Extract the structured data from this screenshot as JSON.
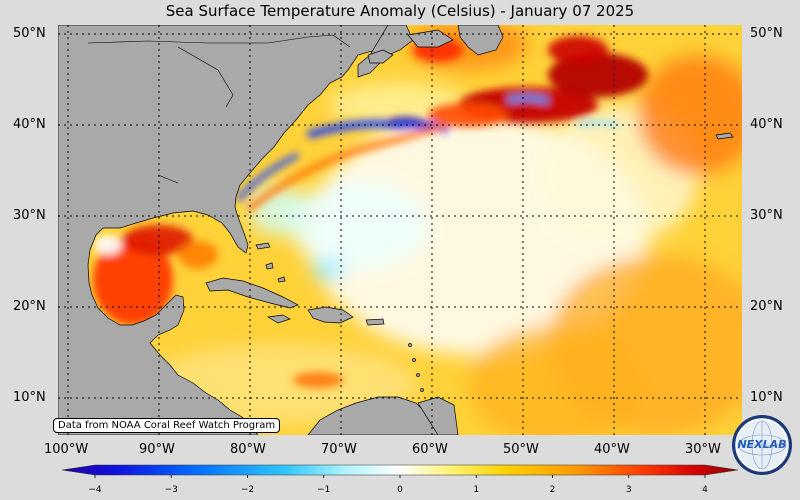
{
  "title": "Sea Surface Temperature Anomaly (Celsius) - January 07 2025",
  "lat_labels": [
    "50°N",
    "40°N",
    "30°N",
    "20°N",
    "10°N"
  ],
  "lon_labels": [
    "100°W",
    "90°W",
    "80°W",
    "70°W",
    "60°W",
    "50°W",
    "40°W",
    "30°W"
  ],
  "credit": "Data from NOAA Coral Reef Watch Program",
  "logo_text": "NEXLAB",
  "colorbar": {
    "min": -4,
    "max": 4,
    "ticks": [
      "−4",
      "−3",
      "−2",
      "−1",
      "0",
      "1",
      "2",
      "3",
      "4"
    ]
  },
  "colors": {
    "land": "#a9a9a9",
    "background": "#dcdcdc"
  }
}
